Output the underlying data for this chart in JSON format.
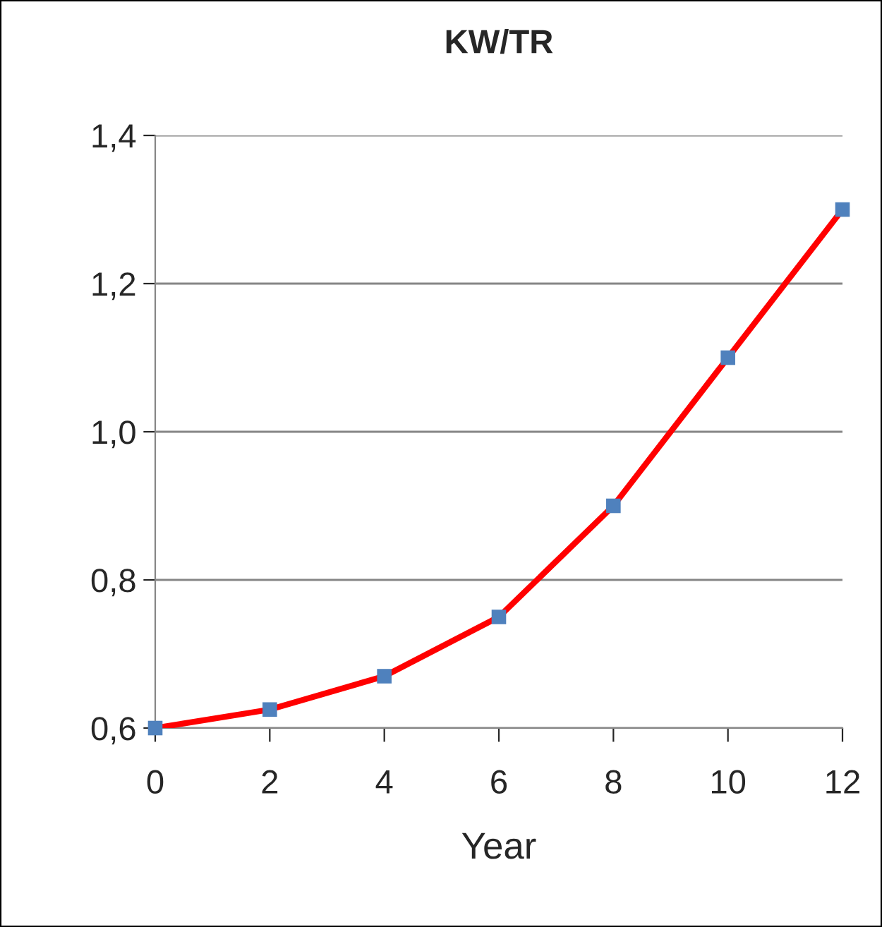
{
  "chart_data": {
    "type": "line",
    "title": "KW/TR",
    "xlabel": "Year",
    "x": [
      0,
      2,
      4,
      6,
      8,
      10,
      12
    ],
    "series": [
      {
        "color": "#ff0000",
        "values": [
          0.6,
          0.625,
          0.67,
          0.75,
          0.9,
          1.1,
          1.3
        ]
      }
    ],
    "xlim": [
      0,
      12
    ],
    "xticks": [
      0,
      2,
      4,
      6,
      8,
      10,
      12
    ],
    "ylim": [
      0.6,
      1.4
    ],
    "yticks": [
      {
        "value": 0.6,
        "label": "0,6"
      },
      {
        "value": 0.8,
        "label": "0,8"
      },
      {
        "value": 1.0,
        "label": "1,0"
      },
      {
        "value": 1.2,
        "label": "1,2"
      },
      {
        "value": 1.4,
        "label": "1,4"
      }
    ],
    "grid": "y",
    "marker": "square",
    "line_style": "solid",
    "legend": false
  }
}
